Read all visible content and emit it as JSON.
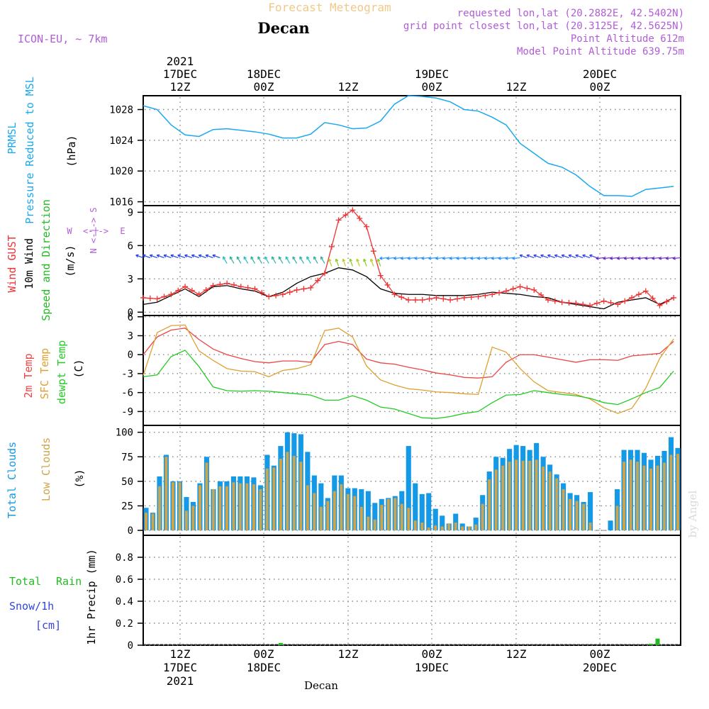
{
  "header": {
    "title_top": "Forecast Meteogram",
    "location": "Decan",
    "model": "ICON-EU, ~ 7km",
    "requested": "requested lon,lat (20.2882E, 42.5402N)",
    "grid_point": "grid point closest lon,lat (20.3125E, 42.5625N)",
    "point_altitude": "Point Altitude 612m",
    "model_altitude": "Model Point Altitude 639.75m"
  },
  "time_axis": {
    "top": [
      {
        "line1": "2021",
        "line2": "17DEC",
        "line3": "12Z"
      },
      {
        "line1": "",
        "line2": "18DEC",
        "line3": "00Z"
      },
      {
        "line1": "",
        "line2": "",
        "line3": "12Z"
      },
      {
        "line1": "",
        "line2": "19DEC",
        "line3": "00Z"
      },
      {
        "line1": "",
        "line2": "",
        "line3": "12Z"
      },
      {
        "line1": "",
        "line2": "20DEC",
        "line3": "00Z"
      }
    ],
    "bottom": [
      {
        "line1": "12Z",
        "line2": "17DEC",
        "line3": "2021"
      },
      {
        "line1": "00Z",
        "line2": "18DEC",
        "line3": ""
      },
      {
        "line1": "12Z",
        "line2": "",
        "line3": ""
      },
      {
        "line1": "00Z",
        "line2": "19DEC",
        "line3": ""
      },
      {
        "line1": "12Z",
        "line2": "",
        "line3": ""
      },
      {
        "line1": "00Z",
        "line2": "20DEC",
        "line3": ""
      }
    ],
    "footer": "Decan",
    "watermark": "by Angel"
  },
  "panel_labels": {
    "pressure": {
      "l1": "PRMSL",
      "l2": "Pressure Reduced to MSL",
      "unit": "(hPa)"
    },
    "wind": {
      "l1": "Wind GUST",
      "l2": "10m Wind",
      "l3": "Speed and Direction",
      "unit": "(m/s)",
      "compass_ns": "N <-|-> S",
      "compass_w": "W",
      "compass_we": "<-|->",
      "compass_e": "E"
    },
    "temp": {
      "l1": "2m Temp",
      "l2": "SFC Temp",
      "l3": "dewpt Temp",
      "unit": "(C)"
    },
    "clouds": {
      "l1": "Total Clouds",
      "l2": "Low Clouds",
      "unit": "(%)"
    },
    "precip": {
      "total": "Total",
      "rain": "Rain",
      "snow": "Snow/1h",
      "cm": "[cm]",
      "ylabel": "1hr Precip (mm)"
    }
  },
  "colors": {
    "pressure": "#1aa8f0",
    "gust": "#ee3333",
    "wind": "#000000",
    "t2m": "#ee4444",
    "sfc": "#e0a030",
    "dew": "#22cc22",
    "total_cloud": "#1499e6",
    "low_cloud": "#cfa44a",
    "precip": "#22bb22",
    "header_purple": "#b15cd8",
    "title_orange": "#f0c98a"
  },
  "chart_data": [
    {
      "type": "line",
      "title": "PRMSL Pressure Reduced to MSL",
      "ylabel": "(hPa)",
      "ylim": [
        1015.5,
        1029.8
      ],
      "yticks": [
        1016,
        1020,
        1024,
        1028
      ],
      "x_hours_start": 0,
      "x_hours_end": 77,
      "series": [
        {
          "name": "PRMSL",
          "color": "#1aa8f0",
          "x": [
            0,
            2,
            4,
            6,
            8,
            10,
            12,
            14,
            16,
            18,
            20,
            22,
            24,
            26,
            28,
            30,
            32,
            34,
            36,
            38,
            40,
            42,
            44,
            46,
            48,
            50,
            52,
            54,
            56,
            58,
            60,
            62,
            64,
            66,
            68,
            70,
            72,
            74,
            76
          ],
          "values": [
            1028.5,
            1028.0,
            1026.0,
            1024.7,
            1024.5,
            1025.4,
            1025.5,
            1025.3,
            1025.1,
            1024.8,
            1024.3,
            1024.3,
            1024.8,
            1026.3,
            1026.0,
            1025.5,
            1025.6,
            1026.5,
            1028.7,
            1029.8,
            1029.7,
            1029.5,
            1029.0,
            1028.0,
            1027.8,
            1027.0,
            1026.0,
            1023.6,
            1022.3,
            1021.0,
            1020.5,
            1019.5,
            1018.0,
            1016.8,
            1016.8,
            1016.7,
            1017.6,
            1017.8,
            1018.0
          ]
        }
      ]
    },
    {
      "type": "line",
      "title": "Wind GUST / 10m Wind Speed and Direction",
      "ylabel": "(m/s)",
      "ylim": [
        -0.3,
        9.6
      ],
      "yticks": [
        0,
        3,
        6,
        9
      ],
      "series": [
        {
          "name": "Wind GUST",
          "color": "#ee3333",
          "x": [
            0,
            2,
            4,
            6,
            8,
            10,
            12,
            14,
            16,
            18,
            20,
            22,
            24,
            26,
            28,
            30,
            32,
            34,
            36,
            38,
            40,
            42,
            44,
            46,
            48,
            50,
            52,
            54,
            56,
            58,
            60,
            62,
            64,
            66,
            68,
            70,
            72,
            74,
            76
          ],
          "values": [
            1.3,
            1.2,
            1.6,
            2.3,
            1.6,
            2.4,
            2.6,
            2.3,
            2.1,
            1.4,
            1.6,
            2.0,
            2.2,
            3.5,
            8.3,
            9.2,
            7.7,
            3.3,
            1.6,
            1.1,
            1.1,
            1.3,
            1.1,
            1.3,
            1.4,
            1.6,
            1.9,
            2.3,
            2.0,
            1.1,
            0.9,
            0.8,
            0.6,
            1.0,
            0.7,
            1.3,
            1.9,
            0.6,
            1.3
          ]
        },
        {
          "name": "10m Wind",
          "color": "#000000",
          "x": [
            0,
            2,
            4,
            6,
            8,
            10,
            12,
            14,
            16,
            18,
            20,
            22,
            24,
            26,
            28,
            30,
            32,
            34,
            36,
            38,
            40,
            42,
            44,
            46,
            48,
            50,
            52,
            54,
            56,
            58,
            60,
            62,
            64,
            66,
            68,
            70,
            72,
            74,
            76
          ],
          "values": [
            0.7,
            0.9,
            1.5,
            2.1,
            1.4,
            2.3,
            2.4,
            2.1,
            1.9,
            1.4,
            1.8,
            2.6,
            3.2,
            3.5,
            4.0,
            3.8,
            3.2,
            2.1,
            1.7,
            1.6,
            1.6,
            1.5,
            1.5,
            1.5,
            1.6,
            1.8,
            1.7,
            1.6,
            1.4,
            1.3,
            0.9,
            0.7,
            0.5,
            0.3,
            0.9,
            1.1,
            1.3,
            0.7,
            1.3
          ]
        }
      ],
      "wind_barb_height": 4.9
    },
    {
      "type": "line",
      "title": "2m Temp / SFC Temp / dewpt Temp",
      "ylabel": "(C)",
      "ylim": [
        -11.2,
        6.2
      ],
      "yticks": [
        -9,
        -6,
        -3,
        0,
        3,
        6
      ],
      "series": [
        {
          "name": "2m Temp",
          "color": "#ee4444",
          "x": [
            0,
            2,
            4,
            6,
            8,
            10,
            12,
            14,
            16,
            18,
            20,
            22,
            24,
            26,
            28,
            30,
            32,
            34,
            36,
            38,
            40,
            42,
            44,
            46,
            48,
            50,
            52,
            54,
            56,
            58,
            60,
            62,
            64,
            66,
            68,
            70,
            72,
            74,
            76
          ],
          "values": [
            0.0,
            2.8,
            3.9,
            4.2,
            2.4,
            0.9,
            0.0,
            -0.6,
            -1.1,
            -1.3,
            -1.0,
            -1.0,
            -1.2,
            1.6,
            2.1,
            1.6,
            -0.7,
            -1.3,
            -1.5,
            -2.0,
            -2.4,
            -2.9,
            -3.2,
            -3.6,
            -3.7,
            -3.5,
            -1.2,
            0.0,
            0.0,
            -0.4,
            -0.8,
            -1.2,
            -0.8,
            -0.8,
            -0.9,
            -0.2,
            0.0,
            0.2,
            2.1
          ]
        },
        {
          "name": "SFC Temp",
          "color": "#e0a030",
          "x": [
            0,
            2,
            4,
            6,
            8,
            10,
            12,
            14,
            16,
            18,
            20,
            22,
            24,
            26,
            28,
            30,
            32,
            34,
            36,
            38,
            40,
            42,
            44,
            46,
            48,
            50,
            52,
            54,
            56,
            58,
            60,
            62,
            64,
            66,
            68,
            70,
            72,
            74,
            76
          ],
          "values": [
            -3.3,
            3.5,
            4.6,
            4.7,
            0.6,
            -0.9,
            -2.2,
            -2.6,
            -2.7,
            -3.5,
            -2.5,
            -2.2,
            -1.6,
            3.8,
            4.2,
            2.8,
            -1.8,
            -4.0,
            -4.8,
            -5.4,
            -5.6,
            -5.9,
            -6.0,
            -6.2,
            -6.3,
            1.2,
            0.4,
            -2.2,
            -4.3,
            -5.7,
            -6.0,
            -6.3,
            -7.0,
            -8.4,
            -9.3,
            -8.5,
            -5.3,
            -0.6,
            2.5
          ]
        },
        {
          "name": "dewpt Temp",
          "color": "#22cc22",
          "x": [
            0,
            2,
            4,
            6,
            8,
            10,
            12,
            14,
            16,
            18,
            20,
            22,
            24,
            26,
            28,
            30,
            32,
            34,
            36,
            38,
            40,
            42,
            44,
            46,
            48,
            50,
            52,
            54,
            56,
            58,
            60,
            62,
            64,
            66,
            68,
            70,
            72,
            74,
            76
          ],
          "values": [
            -3.5,
            -3.2,
            -0.3,
            0.7,
            -1.9,
            -5.1,
            -5.7,
            -5.8,
            -5.7,
            -5.8,
            -6.0,
            -6.2,
            -6.4,
            -7.2,
            -7.2,
            -6.5,
            -7.2,
            -8.3,
            -8.6,
            -9.3,
            -10.0,
            -10.1,
            -9.8,
            -9.3,
            -9.0,
            -7.6,
            -6.4,
            -6.3,
            -5.7,
            -6.0,
            -6.3,
            -6.5,
            -6.9,
            -7.6,
            -7.9,
            -7.0,
            -6.0,
            -5.2,
            -2.6
          ]
        }
      ]
    },
    {
      "type": "bar",
      "title": "Total Clouds / Low Clouds",
      "ylabel": "(%)",
      "ylim": [
        -5,
        107
      ],
      "yticks": [
        0,
        25,
        50,
        75,
        100
      ],
      "series": [
        {
          "name": "Total Clouds",
          "color": "#1499e6",
          "values": [
            23,
            18,
            55,
            77,
            50,
            50,
            34,
            29,
            48,
            75,
            42,
            50,
            50,
            55,
            55,
            55,
            54,
            46,
            77,
            66,
            86,
            100,
            99,
            98,
            80,
            56,
            48,
            33,
            56,
            56,
            43,
            43,
            42,
            40,
            28,
            32,
            33,
            35,
            40,
            86,
            48,
            37,
            38,
            22,
            15,
            7,
            17,
            7,
            4,
            13,
            36,
            60,
            75,
            74,
            83,
            87,
            86,
            82,
            89,
            75,
            67,
            57,
            48,
            38,
            36,
            29,
            39,
            0,
            0,
            10,
            42,
            82,
            82,
            82,
            79,
            72,
            76,
            81,
            95,
            84
          ],
          "times": [
            0,
            1,
            2,
            3,
            4,
            5,
            6,
            7,
            8,
            9,
            10,
            11,
            12,
            13,
            14,
            15,
            16,
            17,
            18,
            19,
            20,
            21,
            22,
            23,
            24,
            25,
            26,
            27,
            28,
            29,
            30,
            31,
            32,
            33,
            34,
            35,
            36,
            37,
            38,
            39,
            40,
            41,
            42,
            43,
            44,
            45,
            46,
            47,
            48,
            49,
            50,
            51,
            52,
            53,
            54,
            55,
            56,
            57,
            58,
            59,
            60,
            61,
            62,
            63,
            64,
            65,
            66,
            67,
            68,
            69,
            70,
            71,
            72,
            73,
            74,
            75,
            76,
            77,
            78,
            79
          ]
        },
        {
          "name": "Low Clouds",
          "color": "#cfa44a",
          "values": [
            18,
            17,
            45,
            75,
            49,
            49,
            20,
            25,
            46,
            69,
            42,
            45,
            45,
            49,
            48,
            48,
            47,
            42,
            63,
            64,
            73,
            80,
            76,
            70,
            46,
            38,
            24,
            30,
            40,
            47,
            37,
            35,
            24,
            14,
            11,
            26,
            32,
            33,
            27,
            23,
            10,
            8,
            3,
            5,
            4,
            7,
            8,
            4,
            4,
            6,
            27,
            52,
            62,
            66,
            70,
            72,
            71,
            71,
            72,
            65,
            60,
            53,
            42,
            32,
            30,
            27,
            8,
            0,
            0,
            0,
            25,
            70,
            72,
            70,
            66,
            63,
            66,
            69,
            77,
            78
          ],
          "times": [
            0,
            1,
            2,
            3,
            4,
            5,
            6,
            7,
            8,
            9,
            10,
            11,
            12,
            13,
            14,
            15,
            16,
            17,
            18,
            19,
            20,
            21,
            22,
            23,
            24,
            25,
            26,
            27,
            28,
            29,
            30,
            31,
            32,
            33,
            34,
            35,
            36,
            37,
            38,
            39,
            40,
            41,
            42,
            43,
            44,
            45,
            46,
            47,
            48,
            49,
            50,
            51,
            52,
            53,
            54,
            55,
            56,
            57,
            58,
            59,
            60,
            61,
            62,
            63,
            64,
            65,
            66,
            67,
            68,
            69,
            70,
            71,
            72,
            73,
            74,
            75,
            76,
            77,
            78,
            79
          ]
        }
      ]
    },
    {
      "type": "bar",
      "title": "1hr Precip",
      "ylabel": "1hr Precip (mm)",
      "ylim": [
        0,
        1.0
      ],
      "yticks": [
        0,
        0.2,
        0.4,
        0.6,
        0.8
      ],
      "ytick_labels": [
        "0",
        "0.2",
        "0.4",
        "0.6",
        "0.8"
      ],
      "series": [
        {
          "name": "Total Rain",
          "color": "#22bb22",
          "times": [
            20,
            75,
            76
          ],
          "values": [
            0.02,
            0.01,
            0.06
          ]
        }
      ]
    }
  ]
}
